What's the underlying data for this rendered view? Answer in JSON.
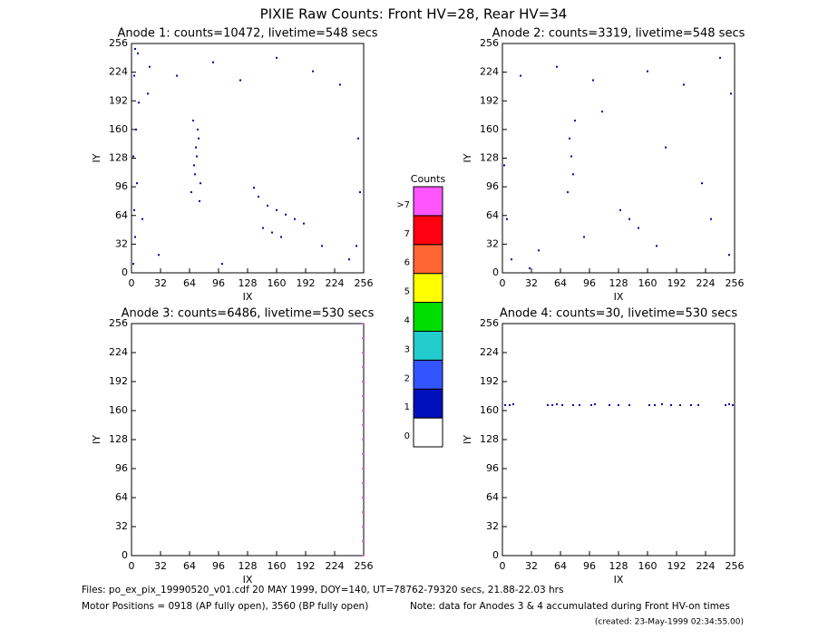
{
  "title": "PIXIE Raw Counts:  Front HV=28, Rear HV=34",
  "chart_data": [
    {
      "type": "scatter",
      "title": "Anode 1: counts=10472, livetime=548 secs",
      "x_label": "IX",
      "y_label": "IY",
      "xlim": [
        0,
        256
      ],
      "ylim": [
        0,
        256
      ],
      "xticks": [
        0,
        32,
        64,
        96,
        128,
        160,
        192,
        224,
        256
      ],
      "yticks": [
        0,
        32,
        64,
        96,
        128,
        160,
        192,
        224,
        256
      ],
      "series": [
        {
          "color": "#0000aa",
          "x": [
            2,
            4,
            3,
            6,
            2,
            5,
            8,
            3,
            7,
            4,
            66,
            70,
            72,
            74,
            68,
            76,
            71,
            73,
            69,
            75,
            135,
            140,
            150,
            160,
            170,
            180,
            190,
            145,
            155,
            165,
            20,
            50,
            90,
            120,
            160,
            200,
            230,
            250,
            252,
            248,
            30,
            100,
            210,
            240,
            12,
            18
          ],
          "y": [
            10,
            40,
            70,
            100,
            130,
            160,
            190,
            220,
            245,
            250,
            90,
            110,
            130,
            150,
            170,
            100,
            140,
            160,
            120,
            80,
            95,
            85,
            75,
            70,
            65,
            60,
            55,
            50,
            45,
            40,
            230,
            220,
            235,
            215,
            240,
            225,
            210,
            150,
            90,
            30,
            20,
            10,
            30,
            15,
            60,
            200
          ]
        }
      ]
    },
    {
      "type": "scatter",
      "title": "Anode 2: counts=3319, livetime=548 secs",
      "x_label": "IX",
      "y_label": "IY",
      "xlim": [
        0,
        256
      ],
      "ylim": [
        0,
        256
      ],
      "xticks": [
        0,
        32,
        64,
        96,
        128,
        160,
        192,
        224,
        256
      ],
      "yticks": [
        0,
        32,
        64,
        96,
        128,
        160,
        192,
        224,
        256
      ],
      "series": [
        {
          "color": "#0000aa",
          "x": [
            2,
            5,
            74,
            76,
            78,
            72,
            80,
            130,
            140,
            150,
            20,
            60,
            100,
            160,
            200,
            240,
            252,
            250,
            10,
            40,
            110,
            180,
            220,
            30,
            90,
            170,
            230
          ],
          "y": [
            120,
            60,
            150,
            130,
            110,
            90,
            170,
            70,
            60,
            50,
            220,
            230,
            215,
            225,
            210,
            240,
            200,
            20,
            15,
            25,
            180,
            140,
            100,
            5,
            40,
            30,
            60
          ]
        }
      ]
    },
    {
      "type": "scatter",
      "title": "Anode 3: counts=6486, livetime=530 secs",
      "x_label": "IX",
      "y_label": "IY",
      "xlim": [
        0,
        256
      ],
      "ylim": [
        0,
        256
      ],
      "xticks": [
        0,
        32,
        64,
        96,
        128,
        160,
        192,
        224,
        256
      ],
      "yticks": [
        0,
        32,
        64,
        96,
        128,
        160,
        192,
        224,
        256
      ],
      "series": [
        {
          "color": "#ff55ff",
          "x": [
            255,
            255,
            255,
            255,
            255,
            255,
            255,
            255,
            255,
            255,
            255,
            255,
            255,
            255,
            255,
            255,
            255
          ],
          "y": [
            0,
            16,
            32,
            48,
            64,
            80,
            96,
            112,
            128,
            144,
            160,
            176,
            192,
            208,
            224,
            240,
            256
          ]
        }
      ]
    },
    {
      "type": "scatter",
      "title": "Anode 4: counts=30, livetime=530 secs",
      "x_label": "IX",
      "y_label": "IY",
      "xlim": [
        0,
        256
      ],
      "ylim": [
        0,
        256
      ],
      "xticks": [
        0,
        32,
        64,
        96,
        128,
        160,
        192,
        224,
        256
      ],
      "yticks": [
        0,
        32,
        64,
        96,
        128,
        160,
        192,
        224,
        256
      ],
      "series": [
        {
          "color": "#0000aa",
          "x": [
            3,
            8,
            12,
            50,
            55,
            60,
            66,
            78,
            85,
            98,
            102,
            118,
            128,
            140,
            162,
            168,
            176,
            186,
            196,
            208,
            216,
            246,
            250,
            254
          ],
          "y": [
            166,
            166,
            167,
            166,
            166,
            167,
            166,
            166,
            166,
            166,
            167,
            166,
            166,
            166,
            166,
            166,
            167,
            166,
            166,
            166,
            166,
            166,
            167,
            166
          ]
        }
      ]
    }
  ],
  "colorbar": {
    "title": "Counts",
    "labels": [
      "0",
      "1",
      "2",
      "3",
      "4",
      "5",
      "6",
      "7",
      ">7"
    ],
    "colors": [
      "#ffffff",
      "#0011bb",
      "#3355ff",
      "#22cccc",
      "#00dd00",
      "#ffff00",
      "#ff6633",
      "#ff0011",
      "#ff55ff"
    ]
  },
  "footer": {
    "files": "Files: po_ex_pix_19990520_v01.cdf    20 MAY 1999, DOY=140, UT=78762-79320 secs, 21.88-22.03 hrs",
    "motor": "Motor Positions = 0918 (AP fully open), 3560 (BP fully open)",
    "note": "Note: data for Anodes 3 & 4 accumulated during Front HV-on times",
    "created": "(created: 23-May-1999 02:34:55.00)"
  }
}
